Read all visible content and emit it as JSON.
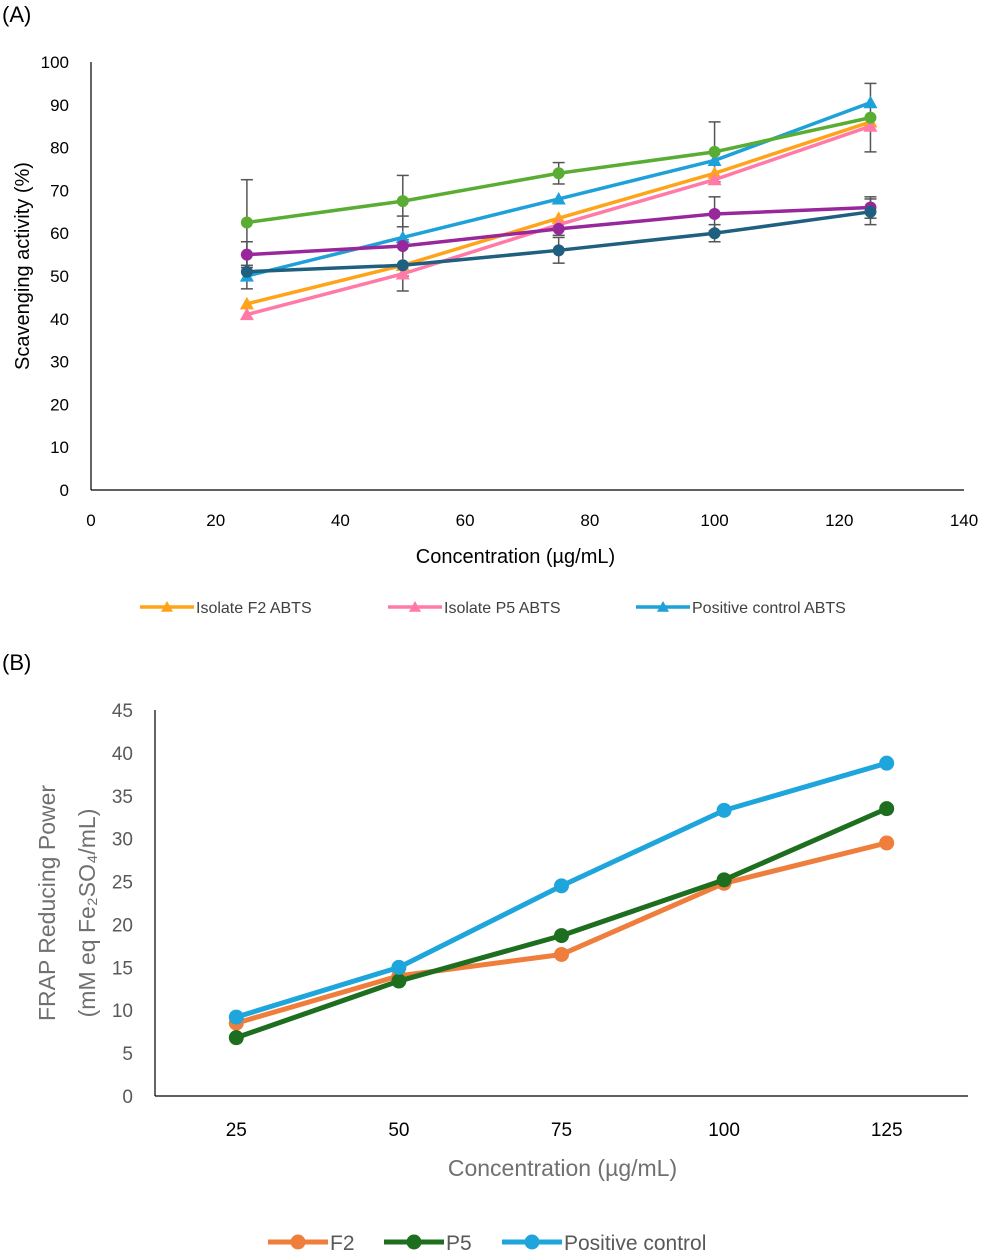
{
  "panels": {
    "a_label": "(A)",
    "b_label": "(B)"
  },
  "chart_data": [
    {
      "type": "line",
      "panel": "(A)",
      "xlabel": "Concentration (µg/mL)",
      "ylabel": "Scavenging activity (%)",
      "xlim": [
        0,
        140
      ],
      "ylim": [
        0,
        100
      ],
      "xticks": [
        0,
        20,
        40,
        60,
        80,
        100,
        120,
        140
      ],
      "yticks": [
        0,
        10,
        20,
        30,
        40,
        50,
        60,
        70,
        80,
        90,
        100
      ],
      "grid": false,
      "legend_position": "bottom",
      "x": [
        25,
        50,
        75,
        100,
        125
      ],
      "series": [
        {
          "name": "Isolate F2 ABTS",
          "color": "#ffa319",
          "marker": "triangle",
          "values": [
            43.5,
            52.5,
            63.5,
            74,
            86
          ],
          "errors": [
            0,
            0,
            0,
            0,
            0
          ]
        },
        {
          "name": "Isolate P5 ABTS",
          "color": "#ff7aa6",
          "marker": "triangle",
          "values": [
            41,
            50.5,
            62,
            72.5,
            85
          ],
          "errors": [
            0,
            0,
            0,
            0,
            0
          ]
        },
        {
          "name": "Positive control ABTS",
          "color": "#1ea1d9",
          "marker": "triangle",
          "values": [
            50,
            59,
            68,
            77,
            90.5
          ],
          "errors": [
            0,
            0,
            0,
            0,
            0
          ]
        },
        {
          "name": "",
          "color": "#5aad33",
          "marker": "circle",
          "values": [
            62.5,
            67.5,
            74,
            79,
            87
          ],
          "errors": [
            10,
            6,
            2.5,
            7,
            8
          ]
        },
        {
          "name": "",
          "color": "#97279a",
          "marker": "circle",
          "values": [
            55,
            57,
            61,
            64.5,
            66
          ],
          "errors": [
            3,
            7,
            1.5,
            4,
            2.5
          ]
        },
        {
          "name": "",
          "color": "#1f5f7f",
          "marker": "circle",
          "values": [
            51,
            52.5,
            56,
            60,
            65
          ],
          "errors": [
            4,
            6,
            3,
            2,
            3
          ]
        }
      ]
    },
    {
      "type": "line",
      "panel": "(B)",
      "xlabel": "Concentration (µg/mL)",
      "ylabel": "FRAP Reducing Power",
      "ylabel_line2": "(mM eq Fe₂SO₄/mL)",
      "categories": [
        "25",
        "50",
        "75",
        "100",
        "125"
      ],
      "ylim": [
        0,
        45
      ],
      "yticks": [
        0,
        5,
        10,
        15,
        20,
        25,
        30,
        35,
        40,
        45
      ],
      "grid": false,
      "legend_position": "bottom",
      "series": [
        {
          "name": "F2",
          "color": "#ef7d3c",
          "values": [
            8.5,
            14,
            16.5,
            24.8,
            29.5
          ]
        },
        {
          "name": "P5",
          "color": "#1e6e20",
          "values": [
            6.8,
            13.4,
            18.7,
            25.2,
            33.5
          ]
        },
        {
          "name": "Positive control",
          "color": "#1ea6dc",
          "values": [
            9.2,
            15,
            24.5,
            33.3,
            38.8
          ]
        }
      ]
    }
  ]
}
